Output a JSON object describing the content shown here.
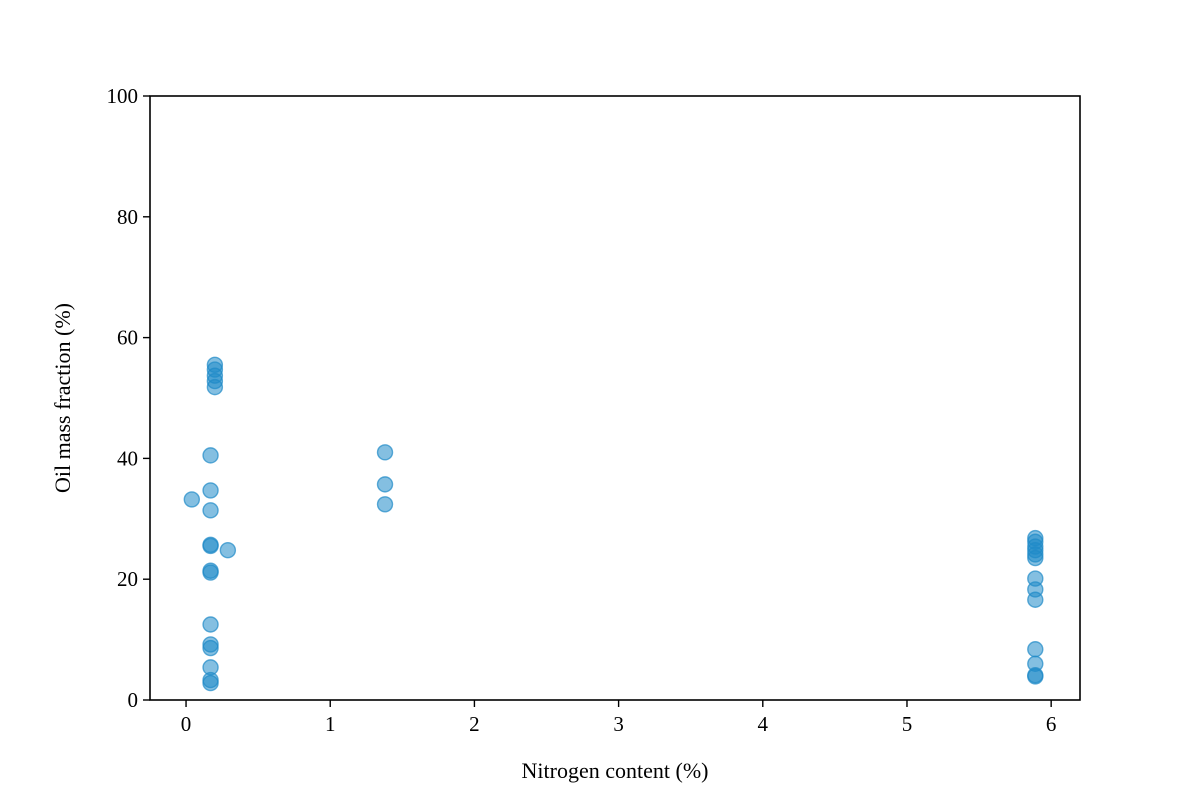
{
  "chart_data": {
    "type": "scatter",
    "xlabel": "Nitrogen content (%)",
    "ylabel": "Oil mass fraction (%)",
    "xlim": [
      -0.25,
      6.2
    ],
    "ylim": [
      0,
      100
    ],
    "xticks": [
      "0",
      "1",
      "2",
      "3",
      "4",
      "5",
      "6"
    ],
    "yticks": [
      "0",
      "20",
      "40",
      "60",
      "80",
      "100"
    ],
    "grid": false,
    "marker_color": "#1f8ac8",
    "series": [
      {
        "points": [
          {
            "x": 0.04,
            "y": 33.2
          },
          {
            "x": 0.17,
            "y": 40.5
          },
          {
            "x": 0.17,
            "y": 34.7
          },
          {
            "x": 0.17,
            "y": 31.4
          },
          {
            "x": 0.17,
            "y": 25.7
          },
          {
            "x": 0.17,
            "y": 25.5
          },
          {
            "x": 0.17,
            "y": 21.4
          },
          {
            "x": 0.17,
            "y": 21.1
          },
          {
            "x": 0.17,
            "y": 12.5
          },
          {
            "x": 0.17,
            "y": 9.2
          },
          {
            "x": 0.17,
            "y": 8.6
          },
          {
            "x": 0.17,
            "y": 5.4
          },
          {
            "x": 0.17,
            "y": 3.3
          },
          {
            "x": 0.17,
            "y": 2.8
          },
          {
            "x": 0.2,
            "y": 55.5
          },
          {
            "x": 0.2,
            "y": 54.7
          },
          {
            "x": 0.2,
            "y": 53.7
          },
          {
            "x": 0.2,
            "y": 52.8
          },
          {
            "x": 0.2,
            "y": 51.8
          },
          {
            "x": 0.29,
            "y": 24.8
          },
          {
            "x": 1.38,
            "y": 41.0
          },
          {
            "x": 1.38,
            "y": 35.7
          },
          {
            "x": 1.38,
            "y": 32.4
          },
          {
            "x": 5.89,
            "y": 26.8
          },
          {
            "x": 5.89,
            "y": 26.2
          },
          {
            "x": 5.89,
            "y": 25.4
          },
          {
            "x": 5.89,
            "y": 24.8
          },
          {
            "x": 5.89,
            "y": 24.1
          },
          {
            "x": 5.89,
            "y": 23.5
          },
          {
            "x": 5.89,
            "y": 20.1
          },
          {
            "x": 5.89,
            "y": 18.3
          },
          {
            "x": 5.89,
            "y": 16.6
          },
          {
            "x": 5.89,
            "y": 8.4
          },
          {
            "x": 5.89,
            "y": 6.0
          },
          {
            "x": 5.89,
            "y": 4.1
          },
          {
            "x": 5.89,
            "y": 3.9
          }
        ]
      }
    ]
  }
}
